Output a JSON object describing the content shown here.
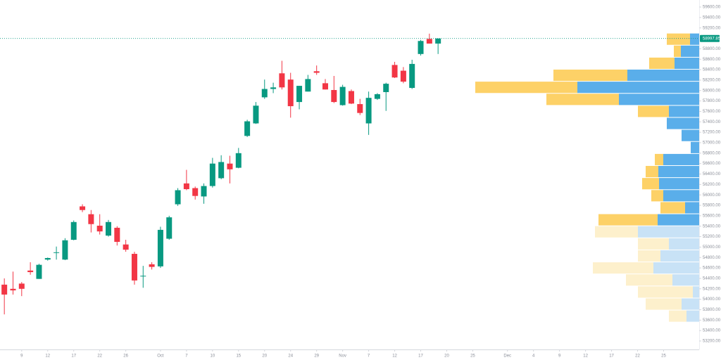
{
  "chart_data": {
    "type": "candlestick",
    "up_color": "#089981",
    "down_color": "#f23645",
    "ylim": [
      53038,
      59735
    ],
    "xlim": [
      -0.5,
      80.1
    ],
    "candles": [
      {
        "open": 54280,
        "high": 54400,
        "low": 53710,
        "close": 54090
      },
      {
        "open": 54200,
        "high": 54530,
        "low": 54090,
        "close": 54170
      },
      {
        "open": 54300,
        "high": 54330,
        "low": 54060,
        "close": 54200
      },
      {
        "open": 54550,
        "high": 54710,
        "low": 54470,
        "close": 54520
      },
      {
        "open": 54390,
        "high": 54680,
        "low": 54390,
        "close": 54660
      },
      {
        "open": 54760,
        "high": 54800,
        "low": 54740,
        "close": 54790
      },
      {
        "open": 54900,
        "high": 55010,
        "low": 54760,
        "close": 54900
      },
      {
        "open": 54760,
        "high": 55170,
        "low": 54750,
        "close": 55130
      },
      {
        "open": 55140,
        "high": 55510,
        "low": 55130,
        "close": 55480
      },
      {
        "open": 55780,
        "high": 55820,
        "low": 55670,
        "close": 55710
      },
      {
        "open": 55630,
        "high": 55710,
        "low": 55280,
        "close": 55440
      },
      {
        "open": 55410,
        "high": 55630,
        "low": 55240,
        "close": 55300
      },
      {
        "open": 55220,
        "high": 55520,
        "low": 55200,
        "close": 55480
      },
      {
        "open": 55370,
        "high": 55400,
        "low": 55030,
        "close": 55100
      },
      {
        "open": 55050,
        "high": 55140,
        "low": 54910,
        "close": 54950
      },
      {
        "open": 54870,
        "high": 54910,
        "low": 54280,
        "close": 54360
      },
      {
        "open": 54450,
        "high": 54640,
        "low": 54220,
        "close": 54450
      },
      {
        "open": 54670,
        "high": 54710,
        "low": 54570,
        "close": 54620
      },
      {
        "open": 54630,
        "high": 55390,
        "low": 54600,
        "close": 55330
      },
      {
        "open": 55160,
        "high": 55600,
        "low": 55140,
        "close": 55570
      },
      {
        "open": 55820,
        "high": 56130,
        "low": 55790,
        "close": 56090
      },
      {
        "open": 56220,
        "high": 56480,
        "low": 56090,
        "close": 56110
      },
      {
        "open": 56130,
        "high": 56160,
        "low": 55910,
        "close": 55980
      },
      {
        "open": 55970,
        "high": 56220,
        "low": 55830,
        "close": 56170
      },
      {
        "open": 56170,
        "high": 56710,
        "low": 56140,
        "close": 56600
      },
      {
        "open": 56320,
        "high": 56760,
        "low": 56300,
        "close": 56630
      },
      {
        "open": 56600,
        "high": 56750,
        "low": 56220,
        "close": 56490
      },
      {
        "open": 56520,
        "high": 56900,
        "low": 56510,
        "close": 56800
      },
      {
        "open": 57130,
        "high": 57440,
        "low": 57110,
        "close": 57410
      },
      {
        "open": 57370,
        "high": 57780,
        "low": 57360,
        "close": 57710
      },
      {
        "open": 57870,
        "high": 58210,
        "low": 57840,
        "close": 58030
      },
      {
        "open": 58030,
        "high": 58150,
        "low": 57950,
        "close": 58060
      },
      {
        "open": 58330,
        "high": 58570,
        "low": 58020,
        "close": 58060
      },
      {
        "open": 58210,
        "high": 58340,
        "low": 57480,
        "close": 57700
      },
      {
        "open": 57780,
        "high": 58090,
        "low": 57640,
        "close": 58090
      },
      {
        "open": 57980,
        "high": 58300,
        "low": 57980,
        "close": 58220
      },
      {
        "open": 58370,
        "high": 58480,
        "low": 58300,
        "close": 58340
      },
      {
        "open": 58140,
        "high": 58220,
        "low": 58020,
        "close": 58020
      },
      {
        "open": 58010,
        "high": 58280,
        "low": 57760,
        "close": 57780
      },
      {
        "open": 57720,
        "high": 58110,
        "low": 57710,
        "close": 58070
      },
      {
        "open": 57990,
        "high": 58020,
        "low": 57740,
        "close": 57750
      },
      {
        "open": 57740,
        "high": 57840,
        "low": 57530,
        "close": 57570
      },
      {
        "open": 57370,
        "high": 57980,
        "low": 57150,
        "close": 57860
      },
      {
        "open": 57840,
        "high": 57950,
        "low": 57820,
        "close": 57930
      },
      {
        "open": 57970,
        "high": 58150,
        "low": 57610,
        "close": 58130
      },
      {
        "open": 58490,
        "high": 58550,
        "low": 58240,
        "close": 58250
      },
      {
        "open": 58380,
        "high": 58450,
        "low": 58140,
        "close": 58170
      },
      {
        "open": 58050,
        "high": 58590,
        "low": 58030,
        "close": 58510
      },
      {
        "open": 58700,
        "high": 58970,
        "low": 58670,
        "close": 58950
      },
      {
        "open": 58990,
        "high": 59090,
        "low": 58900,
        "close": 58900
      },
      {
        "open": 58900,
        "high": 58990,
        "low": 58700,
        "close": 58997.85
      }
    ],
    "last_price": 58997.85,
    "xticks": [
      {
        "value": 2,
        "label": "9"
      },
      {
        "value": 5,
        "label": "12"
      },
      {
        "value": 8,
        "label": "17"
      },
      {
        "value": 11,
        "label": "22"
      },
      {
        "value": 14,
        "label": "26"
      },
      {
        "value": 18,
        "label": "Oct"
      },
      {
        "value": 21,
        "label": "7"
      },
      {
        "value": 24,
        "label": "10"
      },
      {
        "value": 27,
        "label": "15"
      },
      {
        "value": 30,
        "label": "20"
      },
      {
        "value": 33,
        "label": "24"
      },
      {
        "value": 36,
        "label": "29"
      },
      {
        "value": 39,
        "label": "Nov"
      },
      {
        "value": 42,
        "label": "7"
      },
      {
        "value": 45,
        "label": "12"
      },
      {
        "value": 48,
        "label": "17"
      },
      {
        "value": 51,
        "label": "20"
      },
      {
        "value": 54,
        "label": "25"
      },
      {
        "value": 58,
        "label": "Dec"
      },
      {
        "value": 61,
        "label": "4"
      },
      {
        "value": 64,
        "label": "9"
      },
      {
        "value": 67,
        "label": "12"
      },
      {
        "value": 70,
        "label": "17"
      },
      {
        "value": 73,
        "label": "22"
      },
      {
        "value": 76,
        "label": "25"
      }
    ],
    "yticks": [
      {
        "value": 59600,
        "label": "59600.00"
      },
      {
        "value": 59400,
        "label": "59400.00"
      },
      {
        "value": 59200,
        "label": "59200.00"
      },
      {
        "value": 58800,
        "label": "58800.00"
      },
      {
        "value": 58600,
        "label": "58600.00"
      },
      {
        "value": 58400,
        "label": "58400.00"
      },
      {
        "value": 58200,
        "label": "58200.00"
      },
      {
        "value": 58000,
        "label": "58000.00"
      },
      {
        "value": 57800,
        "label": "57800.00"
      },
      {
        "value": 57600,
        "label": "57600.00"
      },
      {
        "value": 57400,
        "label": "57400.00"
      },
      {
        "value": 57200,
        "label": "57200.00"
      },
      {
        "value": 57000,
        "label": "57000.00"
      },
      {
        "value": 56800,
        "label": "56800.00"
      },
      {
        "value": 56600,
        "label": "56600.00"
      },
      {
        "value": 56400,
        "label": "56400.00"
      },
      {
        "value": 56200,
        "label": "56200.00"
      },
      {
        "value": 56000,
        "label": "56000.00"
      },
      {
        "value": 55800,
        "label": "55800.00"
      },
      {
        "value": 55600,
        "label": "55600.00"
      },
      {
        "value": 55400,
        "label": "55400.00"
      },
      {
        "value": 55200,
        "label": "55200.00"
      },
      {
        "value": 55000,
        "label": "55000.00"
      },
      {
        "value": 54800,
        "label": "54800.00"
      },
      {
        "value": 54600,
        "label": "54600.00"
      },
      {
        "value": 54400,
        "label": "54400.00"
      },
      {
        "value": 54200,
        "label": "54200.00"
      },
      {
        "value": 54000,
        "label": "54000.00"
      },
      {
        "value": 53800,
        "label": "53800.00"
      },
      {
        "value": 53600,
        "label": "53600.00"
      },
      {
        "value": 53400,
        "label": "53400.00"
      },
      {
        "value": 53200,
        "label": "53200.00"
      }
    ],
    "profile": {
      "bin_edges": [
        59100,
        58869,
        58638,
        58408,
        58177,
        57946,
        57715,
        57485,
        57254,
        57023,
        56792,
        56562,
        56331,
        56100,
        55869,
        55638,
        55408,
        55177,
        54946,
        54715,
        54485,
        54254,
        54023,
        53792,
        53562
      ],
      "up_volume": [
        13,
        26,
        35,
        102,
        173,
        114,
        43,
        46,
        25,
        12,
        51,
        58,
        57,
        51,
        20,
        59,
        87,
        43,
        55,
        65,
        38,
        9,
        25,
        18
      ],
      "down_volume": [
        33,
        10,
        36,
        105,
        145,
        103,
        44,
        0,
        0,
        0,
        12,
        18,
        24,
        17,
        35,
        84,
        61,
        44,
        32,
        86,
        66,
        78,
        51,
        25
      ],
      "up_color": "#5aaeea",
      "down_color": "#fdd167",
      "up_color_outside": "#c8e2f6",
      "down_color_outside": "#fdf0cc",
      "value_area": [
        55408,
        59100
      ]
    }
  }
}
